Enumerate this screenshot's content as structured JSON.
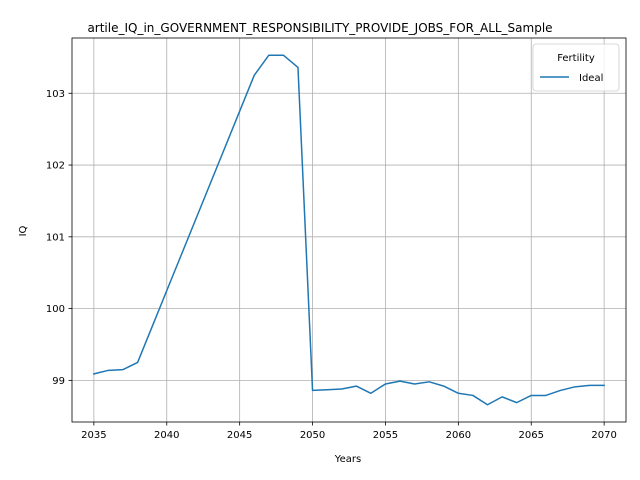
{
  "chart_data": {
    "type": "line",
    "title": "artile_IQ_in_GOVERNMENT_RESPONSIBILITY_PROVIDE_JOBS_FOR_ALL_Sample",
    "xlabel": "Years",
    "ylabel": "IQ",
    "xlim": [
      2033.5,
      2071.5
    ],
    "ylim": [
      98.42,
      103.77
    ],
    "grid": true,
    "x_ticks": [
      2035,
      2040,
      2045,
      2050,
      2055,
      2060,
      2065,
      2070
    ],
    "y_ticks": [
      99,
      100,
      101,
      102,
      103
    ],
    "legend": {
      "title": "Fertility",
      "placement": "top-right"
    },
    "series": [
      {
        "name": "Ideal",
        "color": "#1f77b4",
        "x": [
          2035,
          2036,
          2037,
          2038,
          2039,
          2040,
          2041,
          2042,
          2043,
          2044,
          2045,
          2046,
          2047,
          2048,
          2049,
          2050,
          2051,
          2052,
          2053,
          2054,
          2055,
          2056,
          2057,
          2058,
          2059,
          2060,
          2061,
          2062,
          2063,
          2064,
          2065,
          2066,
          2067,
          2068,
          2069,
          2070
        ],
        "y": [
          99.09,
          99.14,
          99.15,
          99.25,
          99.75,
          100.25,
          100.75,
          101.25,
          101.75,
          102.25,
          102.75,
          103.25,
          103.53,
          103.53,
          103.36,
          98.86,
          98.87,
          98.88,
          98.92,
          98.82,
          98.95,
          98.99,
          98.95,
          98.98,
          98.92,
          98.82,
          98.79,
          98.66,
          98.77,
          98.69,
          98.79,
          98.79,
          98.86,
          98.91,
          98.93,
          98.93
        ]
      }
    ]
  }
}
